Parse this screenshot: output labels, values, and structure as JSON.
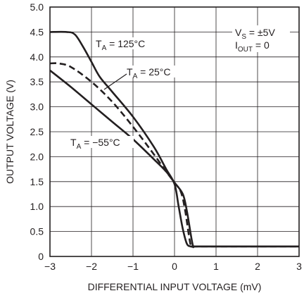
{
  "chart_data": {
    "type": "line",
    "title": "",
    "xlabel": "DIFFERENTIAL INPUT VOLTAGE (mV)",
    "ylabel": "OUTPUT VOLTAGE (V)",
    "xlim": [
      -3,
      3
    ],
    "ylim": [
      0,
      5.0
    ],
    "grid": true,
    "xticks": [
      "−3",
      "−2",
      "−1",
      "0",
      "1",
      "2",
      "3"
    ],
    "yticks": [
      "0",
      "0.5",
      "1.0",
      "1.5",
      "2.0",
      "2.5",
      "3.0",
      "3.5",
      "4.0",
      "4.5",
      "5.0"
    ],
    "conditions": {
      "vs": {
        "main": "V",
        "sub": "S",
        "rest": " = ±5V"
      },
      "iout": {
        "main": "I",
        "sub": "OUT",
        "rest": " = 0"
      }
    },
    "series": [
      {
        "name": "TA = 125°C",
        "label": {
          "main": "T",
          "sub": "A",
          "rest": " = 125°C"
        },
        "style": "solid",
        "x": [
          -3.0,
          -2.6,
          -2.4,
          -2.2,
          -2.0,
          -1.8,
          -1.5,
          -1.0,
          -0.5,
          -0.2,
          0.0,
          0.1,
          0.2,
          0.3,
          0.4,
          0.45,
          1.0,
          2.0,
          3.0
        ],
        "y": [
          4.5,
          4.5,
          4.45,
          4.2,
          3.9,
          3.6,
          3.3,
          2.8,
          2.2,
          1.75,
          1.45,
          1.0,
          0.55,
          0.25,
          0.2,
          0.2,
          0.2,
          0.2,
          0.2
        ]
      },
      {
        "name": "TA = 25°C",
        "label": {
          "main": "T",
          "sub": "A",
          "rest": " = 25°C"
        },
        "style": "dashed",
        "x": [
          -3.0,
          -2.8,
          -2.5,
          -2.0,
          -1.5,
          -1.0,
          -0.5,
          -0.2,
          0.0,
          0.15,
          0.25,
          0.35,
          0.4,
          0.45,
          1.0,
          2.0,
          3.0
        ],
        "y": [
          3.87,
          3.87,
          3.8,
          3.5,
          3.1,
          2.6,
          2.05,
          1.7,
          1.48,
          1.3,
          0.95,
          0.4,
          0.2,
          0.2,
          0.2,
          0.2,
          0.2
        ]
      },
      {
        "name": "TA = −55°C",
        "label": {
          "main": "T",
          "sub": "A",
          "rest": " = −55°C"
        },
        "style": "solid",
        "x": [
          -3.0,
          -2.5,
          -2.0,
          -1.5,
          -1.0,
          -0.5,
          -0.2,
          0.0,
          0.2,
          0.3,
          0.4,
          0.45,
          0.5,
          1.0,
          2.0,
          3.0
        ],
        "y": [
          3.73,
          3.4,
          3.05,
          2.7,
          2.35,
          1.95,
          1.7,
          1.48,
          1.25,
          0.9,
          0.4,
          0.2,
          0.2,
          0.2,
          0.2,
          0.2
        ]
      }
    ]
  }
}
